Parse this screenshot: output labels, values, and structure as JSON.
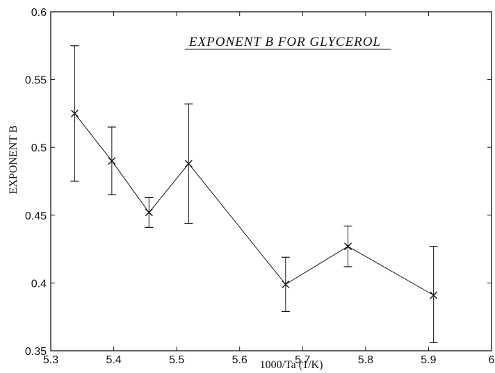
{
  "chart_data": {
    "type": "scatter",
    "title": "EXPONENT  B  FOR GLYCEROL",
    "xlabel": "1000/Ta (1/K)",
    "ylabel": "EXPONENT  B",
    "xlim": [
      5.3,
      6.0
    ],
    "ylim": [
      0.35,
      0.6
    ],
    "xticks": [
      "5.3",
      "5.4",
      "5.5",
      "5.6",
      "5.7",
      "5.8",
      "5.9",
      "6"
    ],
    "yticks": [
      "0.35",
      "0.4",
      "0.45",
      "0.5",
      "0.55",
      "0.6"
    ],
    "grid": false,
    "connected": true,
    "marker": "x",
    "points": [
      {
        "x": 5.338,
        "y": 0.525,
        "err_low": 0.475,
        "err_high": 0.575
      },
      {
        "x": 5.397,
        "y": 0.49,
        "err_low": 0.465,
        "err_high": 0.515
      },
      {
        "x": 5.456,
        "y": 0.452,
        "err_low": 0.441,
        "err_high": 0.463
      },
      {
        "x": 5.519,
        "y": 0.488,
        "err_low": 0.444,
        "err_high": 0.532
      },
      {
        "x": 5.673,
        "y": 0.399,
        "err_low": 0.379,
        "err_high": 0.419
      },
      {
        "x": 5.772,
        "y": 0.427,
        "err_low": 0.412,
        "err_high": 0.442
      },
      {
        "x": 5.908,
        "y": 0.391,
        "err_low": 0.356,
        "err_high": 0.427
      }
    ],
    "colors": {
      "line": "#111111",
      "axis": "#111111"
    }
  }
}
